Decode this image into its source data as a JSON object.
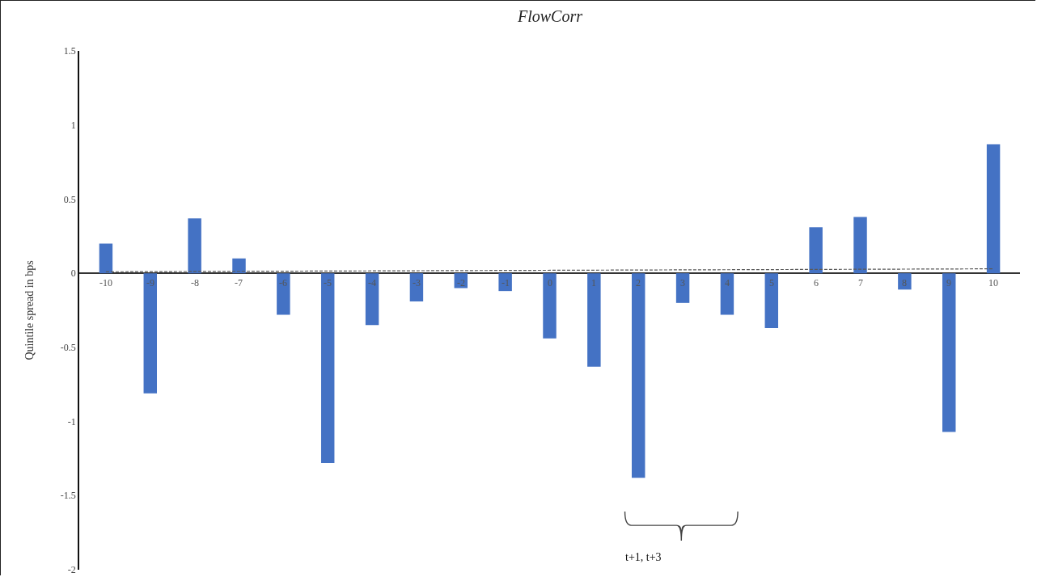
{
  "chart_data": {
    "type": "bar",
    "title": "FlowCorr",
    "ylabel": "Quintile spread in bps",
    "categories": [
      "-10",
      "-9",
      "-8",
      "-7",
      "-6",
      "-5",
      "-4",
      "-3",
      "-2",
      "-1",
      "0",
      "1",
      "2",
      "3",
      "4",
      "5",
      "6",
      "7",
      "8",
      "9",
      "10"
    ],
    "series": [
      {
        "color": "#4472c4",
        "values": [
          0.2,
          -0.81,
          0.37,
          0.1,
          -0.28,
          -1.28,
          -0.35,
          -0.19,
          -0.1,
          -0.12,
          -0.44,
          -0.63,
          -1.38,
          -0.2,
          -0.28,
          -0.37,
          0.31,
          0.38,
          -0.11,
          -1.07,
          0.87
        ]
      },
      {
        "type": "line",
        "color": "#595959",
        "line_style": "dashed",
        "marker": "none",
        "x": [
          "-10",
          "10"
        ],
        "values": [
          0.01,
          0.03
        ]
      }
    ],
    "ylim": [
      -2,
      1.5
    ],
    "yticks": [
      -2,
      -1.5,
      -1,
      -0.5,
      0,
      0.5,
      1,
      1.5
    ],
    "grid": false,
    "annotations": [
      "t+1, t+3"
    ]
  }
}
